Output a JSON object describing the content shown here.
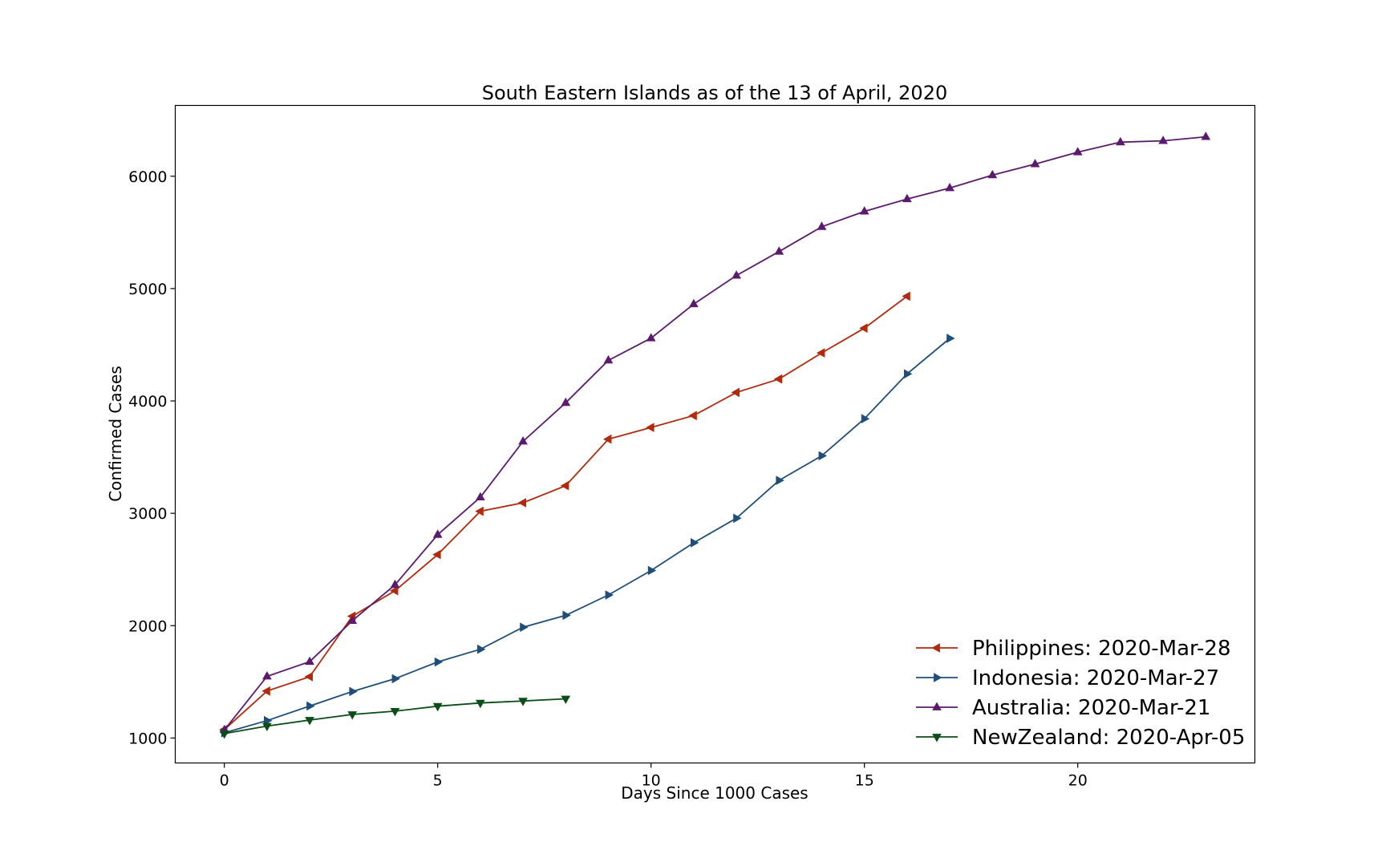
{
  "chart_data": {
    "type": "line",
    "title": "South Eastern Islands as of the 13 of April, 2020",
    "xlabel": "Days Since 1000 Cases",
    "ylabel": "Confirmed Cases",
    "xlim": [
      -1.15,
      24.15
    ],
    "ylim": [
      778,
      6630
    ],
    "xticks": [
      0,
      5,
      10,
      15,
      20
    ],
    "yticks": [
      1000,
      2000,
      3000,
      4000,
      5000,
      6000
    ],
    "grid": false,
    "legend_position": "lower-right",
    "series": [
      {
        "name": "Philippines: 2020-Mar-28",
        "color": "#b22a0c",
        "marker": "triangle-left",
        "x": [
          0,
          1,
          2,
          3,
          4,
          5,
          6,
          7,
          8,
          9,
          10,
          11,
          12,
          13,
          14,
          15,
          16
        ],
        "values": [
          1075,
          1418,
          1546,
          2084,
          2311,
          2633,
          3018,
          3094,
          3246,
          3660,
          3764,
          3870,
          4076,
          4195,
          4428,
          4648,
          4932
        ]
      },
      {
        "name": "Indonesia: 2020-Mar-27",
        "color": "#1f4e79",
        "marker": "triangle-right",
        "x": [
          0,
          1,
          2,
          3,
          4,
          5,
          6,
          7,
          8,
          9,
          10,
          11,
          12,
          13,
          14,
          15,
          16,
          17
        ],
        "values": [
          1046,
          1155,
          1285,
          1414,
          1528,
          1677,
          1790,
          1986,
          2092,
          2273,
          2491,
          2738,
          2956,
          3293,
          3512,
          3842,
          4241,
          4557
        ]
      },
      {
        "name": "Australia: 2020-Mar-21",
        "color": "#5c1a6e",
        "marker": "triangle-up",
        "x": [
          0,
          1,
          2,
          3,
          4,
          5,
          6,
          7,
          8,
          9,
          10,
          11,
          12,
          13,
          14,
          15,
          16,
          17,
          18,
          19,
          20,
          21,
          22,
          23
        ],
        "values": [
          1071,
          1549,
          1679,
          2044,
          2364,
          2810,
          3143,
          3640,
          3984,
          4361,
          4559,
          4862,
          5116,
          5330,
          5550,
          5687,
          5797,
          5895,
          6010,
          6108,
          6215,
          6303,
          6315,
          6351
        ]
      },
      {
        "name": "NewZealand: 2020-Apr-05",
        "color": "#0b4d17",
        "marker": "triangle-down",
        "x": [
          0,
          1,
          2,
          3,
          4,
          5,
          6,
          7,
          8
        ],
        "values": [
          1039,
          1106,
          1160,
          1210,
          1239,
          1283,
          1312,
          1330,
          1349
        ]
      }
    ]
  }
}
